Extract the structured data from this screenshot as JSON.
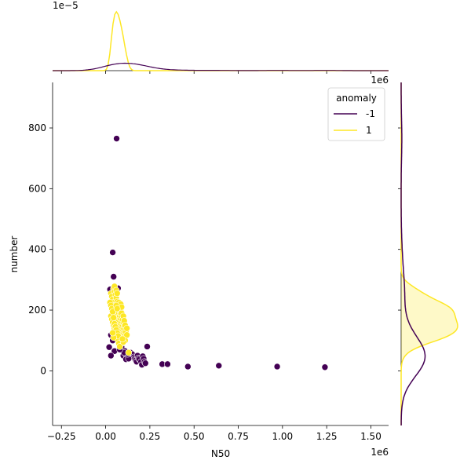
{
  "chart_data": {
    "type": "scatter",
    "title": "",
    "xlabel": "N50",
    "ylabel": "number",
    "x_offset_label": "1e6",
    "y_offset_label": "",
    "top_marginal_offset_label": "1e−5",
    "xlim": [
      -0.3,
      1.6
    ],
    "ylim": [
      -180,
      950
    ],
    "xticks": [
      -0.25,
      0.0,
      0.25,
      0.5,
      0.75,
      1.0,
      1.25,
      1.5
    ],
    "xtick_labels": [
      "−0.25",
      "0.00",
      "0.25",
      "0.50",
      "0.75",
      "1.00",
      "1.25",
      "1.50"
    ],
    "yticks": [
      0,
      200,
      400,
      600,
      800
    ],
    "ytick_labels": [
      "0",
      "200",
      "400",
      "600",
      "800"
    ],
    "grid": false,
    "legend": {
      "title": "anomaly",
      "placement": "top-right",
      "entries": [
        {
          "label": "-1",
          "color": "#440154"
        },
        {
          "label": "1",
          "color": "#fde725"
        }
      ]
    },
    "marginals": {
      "top": "kde of N50 by anomaly",
      "right": "kde of number by anomaly"
    },
    "series": [
      {
        "name": "-1",
        "color": "#440154",
        "points": [
          [
            0.062,
            765
          ],
          [
            0.04,
            390
          ],
          [
            0.045,
            310
          ],
          [
            0.025,
            268
          ],
          [
            0.07,
            272
          ],
          [
            0.05,
            255
          ],
          [
            0.035,
            220
          ],
          [
            0.04,
            160
          ],
          [
            0.05,
            130
          ],
          [
            0.03,
            118
          ],
          [
            0.04,
            100
          ],
          [
            0.065,
            110
          ],
          [
            0.02,
            78
          ],
          [
            0.05,
            65
          ],
          [
            0.03,
            50
          ],
          [
            0.09,
            78
          ],
          [
            0.11,
            65
          ],
          [
            0.1,
            50
          ],
          [
            0.12,
            45
          ],
          [
            0.115,
            38
          ],
          [
            0.14,
            60
          ],
          [
            0.15,
            55
          ],
          [
            0.16,
            45
          ],
          [
            0.165,
            40
          ],
          [
            0.17,
            35
          ],
          [
            0.175,
            30
          ],
          [
            0.18,
            50
          ],
          [
            0.185,
            42
          ],
          [
            0.19,
            38
          ],
          [
            0.2,
            30
          ],
          [
            0.205,
            20
          ],
          [
            0.21,
            48
          ],
          [
            0.215,
            40
          ],
          [
            0.22,
            30
          ],
          [
            0.225,
            25
          ],
          [
            0.235,
            80
          ],
          [
            0.13,
            40
          ],
          [
            0.125,
            55
          ],
          [
            0.105,
            60
          ],
          [
            0.08,
            70
          ],
          [
            0.32,
            22
          ],
          [
            0.35,
            22
          ],
          [
            0.465,
            14
          ],
          [
            0.64,
            17
          ],
          [
            0.97,
            14
          ],
          [
            1.24,
            12
          ]
        ]
      },
      {
        "name": "1",
        "color": "#fde725",
        "points": [
          [
            0.03,
            255
          ],
          [
            0.035,
            245
          ],
          [
            0.04,
            235
          ],
          [
            0.045,
            225
          ],
          [
            0.05,
            215
          ],
          [
            0.055,
            205
          ],
          [
            0.06,
            195
          ],
          [
            0.065,
            185
          ],
          [
            0.07,
            175
          ],
          [
            0.075,
            165
          ],
          [
            0.08,
            155
          ],
          [
            0.085,
            145
          ],
          [
            0.09,
            135
          ],
          [
            0.095,
            125
          ],
          [
            0.1,
            115
          ],
          [
            0.035,
            200
          ],
          [
            0.04,
            190
          ],
          [
            0.045,
            180
          ],
          [
            0.05,
            170
          ],
          [
            0.055,
            160
          ],
          [
            0.06,
            150
          ],
          [
            0.065,
            140
          ],
          [
            0.07,
            130
          ],
          [
            0.075,
            120
          ],
          [
            0.08,
            110
          ],
          [
            0.085,
            100
          ],
          [
            0.09,
            90
          ],
          [
            0.03,
            180
          ],
          [
            0.035,
            170
          ],
          [
            0.04,
            160
          ],
          [
            0.045,
            150
          ],
          [
            0.05,
            140
          ],
          [
            0.055,
            130
          ],
          [
            0.06,
            120
          ],
          [
            0.065,
            110
          ],
          [
            0.07,
            100
          ],
          [
            0.075,
            90
          ],
          [
            0.08,
            80
          ],
          [
            0.045,
            270
          ],
          [
            0.05,
            262
          ],
          [
            0.055,
            250
          ],
          [
            0.06,
            240
          ],
          [
            0.065,
            228
          ],
          [
            0.07,
            218
          ],
          [
            0.075,
            208
          ],
          [
            0.08,
            198
          ],
          [
            0.085,
            188
          ],
          [
            0.09,
            178
          ],
          [
            0.095,
            168
          ],
          [
            0.1,
            158
          ],
          [
            0.105,
            148
          ],
          [
            0.11,
            138
          ],
          [
            0.115,
            128
          ],
          [
            0.12,
            118
          ],
          [
            0.025,
            225
          ],
          [
            0.03,
            215
          ],
          [
            0.035,
            205
          ],
          [
            0.04,
            195
          ],
          [
            0.045,
            175
          ],
          [
            0.05,
            155
          ],
          [
            0.055,
            145
          ],
          [
            0.06,
            135
          ],
          [
            0.065,
            125
          ],
          [
            0.07,
            115
          ],
          [
            0.05,
            278
          ],
          [
            0.06,
            265
          ],
          [
            0.065,
            255
          ],
          [
            0.08,
            210
          ],
          [
            0.085,
            200
          ],
          [
            0.09,
            190
          ],
          [
            0.1,
            180
          ],
          [
            0.105,
            165
          ],
          [
            0.11,
            150
          ],
          [
            0.12,
            140
          ],
          [
            0.13,
            60
          ],
          [
            0.11,
            100
          ],
          [
            0.1,
            95
          ],
          [
            0.095,
            105
          ],
          [
            0.045,
            110
          ],
          [
            0.04,
            125
          ],
          [
            0.075,
            225
          ],
          [
            0.085,
            220
          ],
          [
            0.09,
            210
          ],
          [
            0.06,
            215
          ],
          [
            0.065,
            205
          ]
        ]
      }
    ]
  }
}
